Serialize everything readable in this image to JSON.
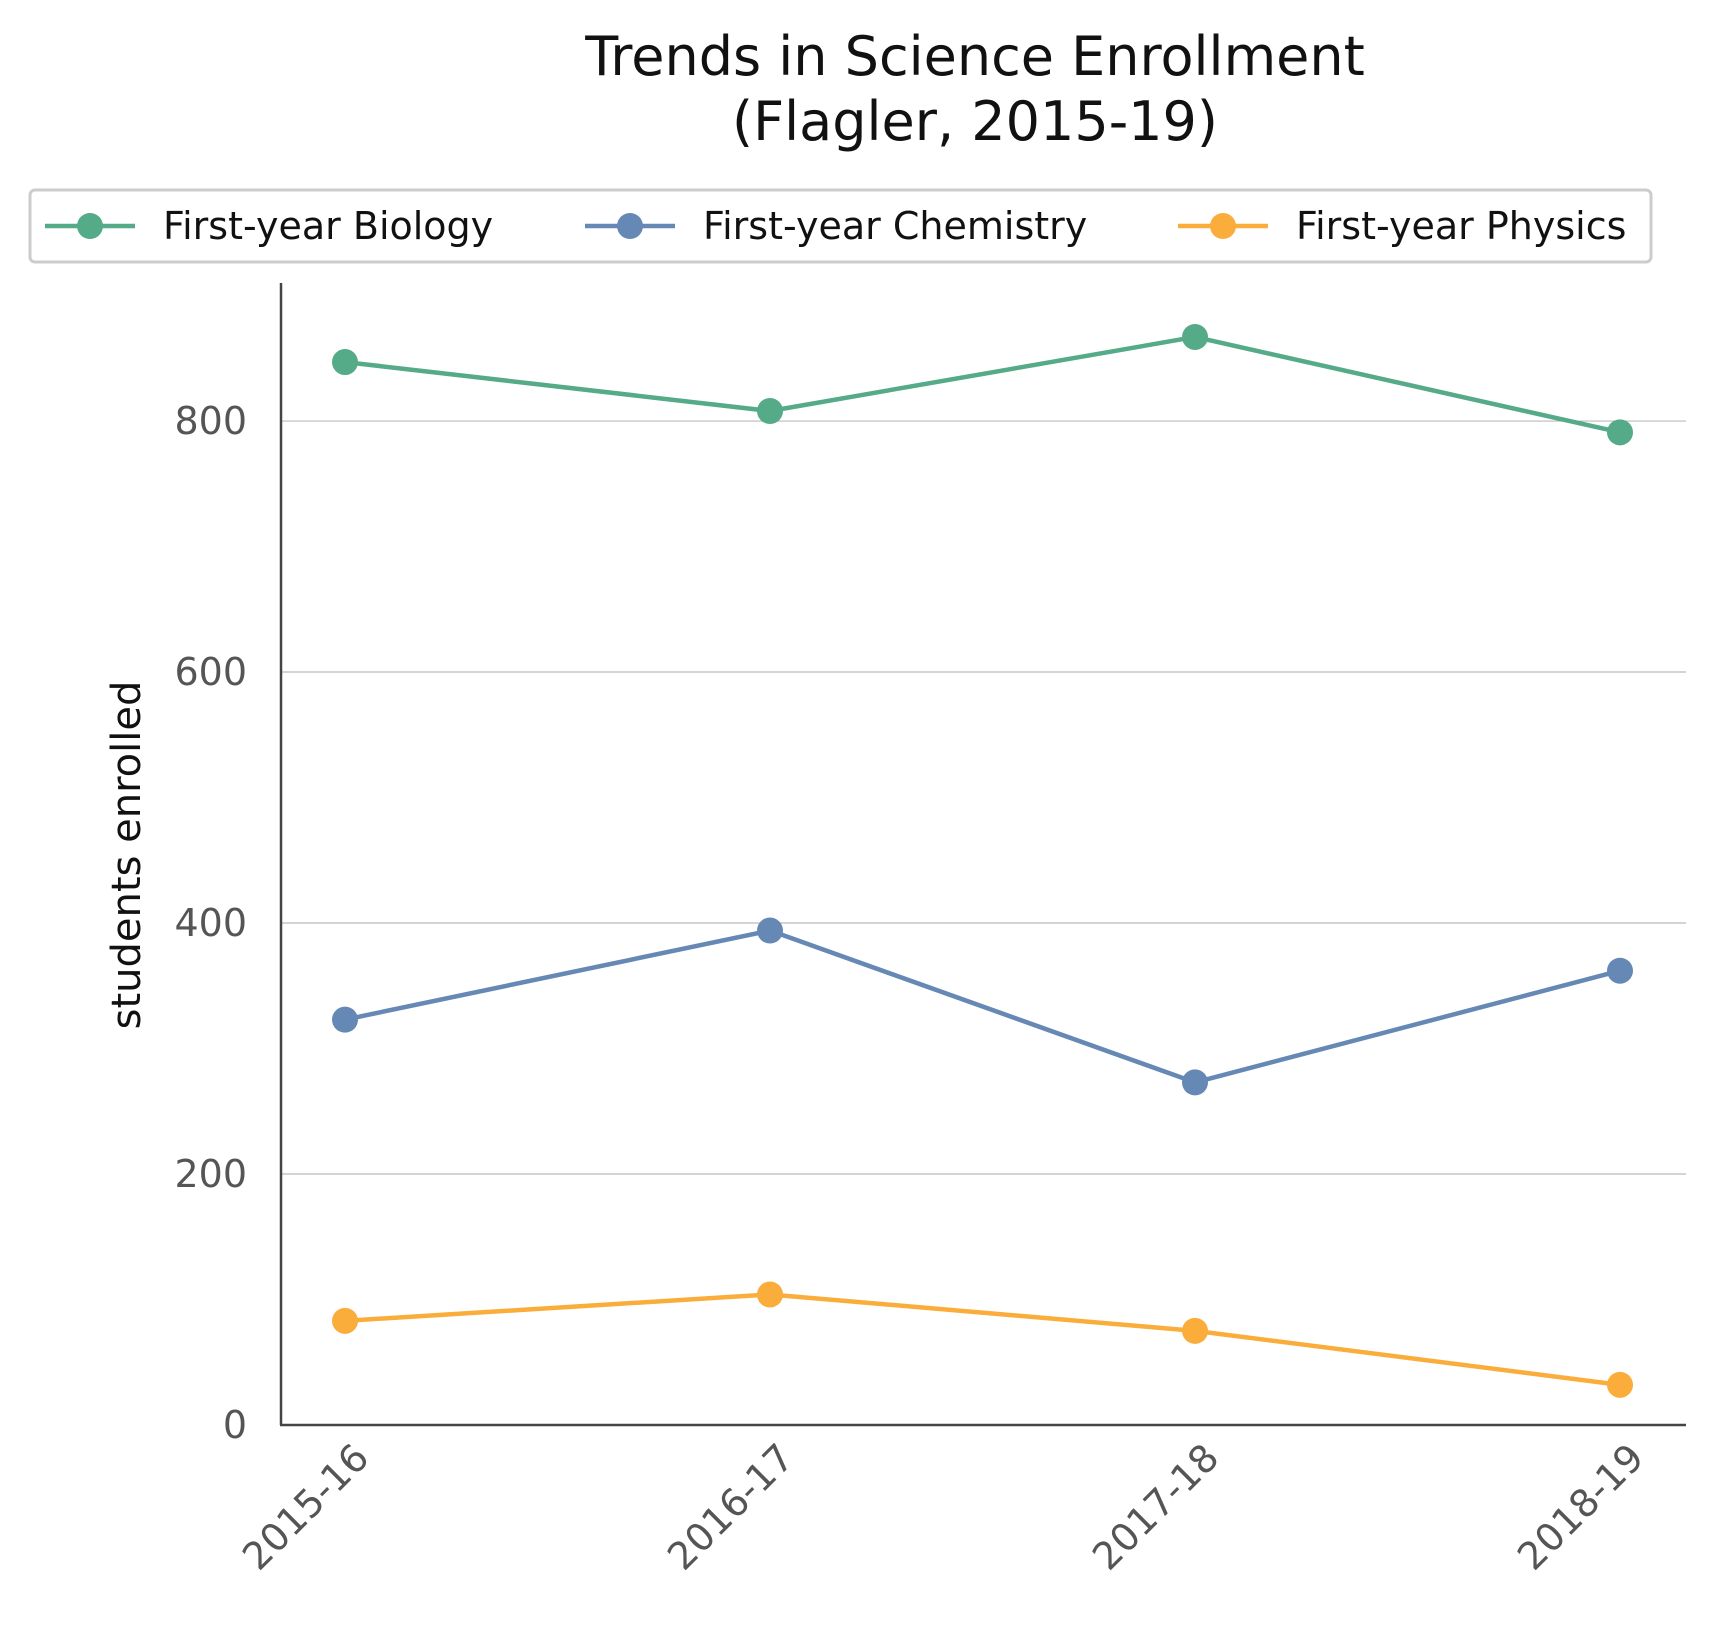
{
  "chart_data": {
    "type": "line",
    "title_line1": "Trends in Science Enrollment",
    "title_line2": "(Flagler, 2015-19)",
    "xlabel": "",
    "ylabel": "students enrolled",
    "categories": [
      "2015-16",
      "2016-17",
      "2017-18",
      "2018-19"
    ],
    "ylim": [
      0,
      910
    ],
    "yticks": [
      0,
      200,
      400,
      600,
      800
    ],
    "grid": "horizontal",
    "legend_position": "top",
    "series": [
      {
        "name": "First-year Biology",
        "color": "#55AA88",
        "values": [
          847,
          808,
          867,
          791
        ]
      },
      {
        "name": "First-year Chemistry",
        "color": "#6688B4",
        "values": [
          323,
          394,
          273,
          362
        ]
      },
      {
        "name": "First-year Physics",
        "color": "#FAAD3B",
        "values": [
          83,
          104,
          75,
          32
        ]
      }
    ]
  }
}
